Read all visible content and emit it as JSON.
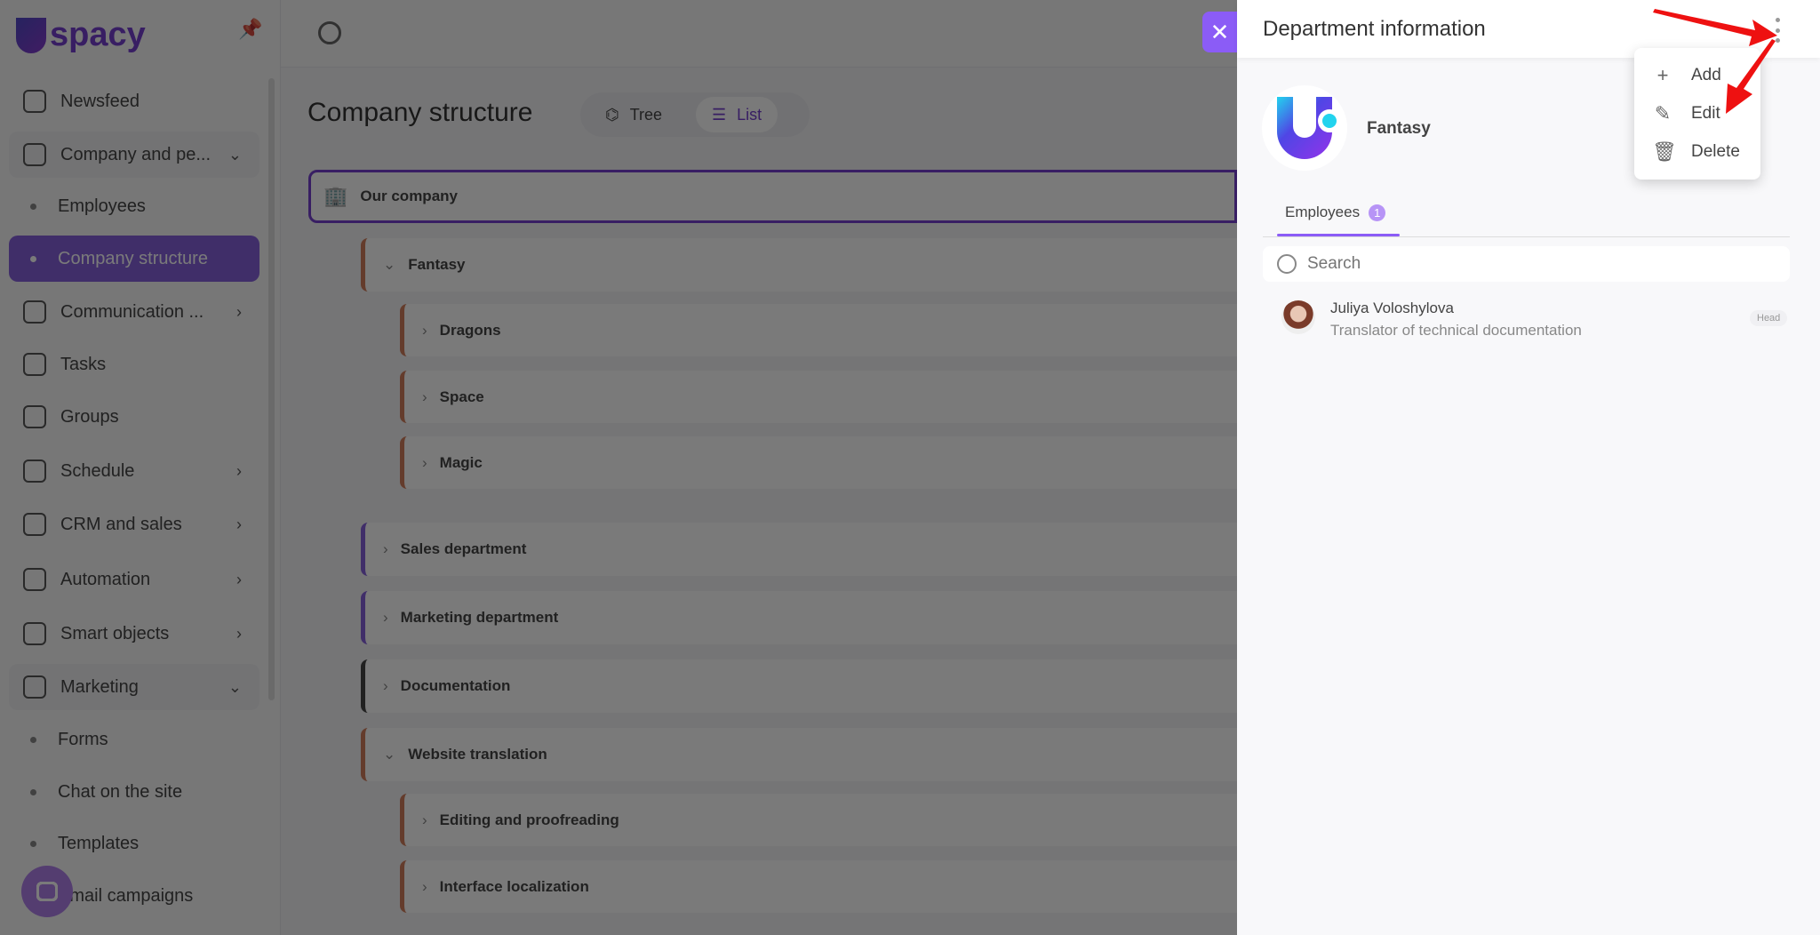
{
  "sidebar": {
    "logo": "spacy",
    "items": [
      {
        "label": "Newsfeed",
        "icon": "home-icon"
      },
      {
        "label": "Company and pe...",
        "icon": "building-icon",
        "expanded": true
      },
      {
        "label": "Employees",
        "sub": true
      },
      {
        "label": "Company structure",
        "sub": true,
        "active": true
      },
      {
        "label": "Communication ...",
        "icon": "chat-icon"
      },
      {
        "label": "Tasks",
        "icon": "check-circle-icon"
      },
      {
        "label": "Groups",
        "icon": "users-icon"
      },
      {
        "label": "Schedule",
        "icon": "calendar-icon"
      },
      {
        "label": "CRM and sales",
        "icon": "coins-icon"
      },
      {
        "label": "Automation",
        "icon": "lightning-icon"
      },
      {
        "label": "Smart objects",
        "icon": "scan-icon"
      },
      {
        "label": "Marketing",
        "icon": "megaphone-icon",
        "expanded": true
      },
      {
        "label": "Forms",
        "sub": true
      },
      {
        "label": "Chat on the site",
        "sub": true
      },
      {
        "label": "Templates",
        "sub": true
      },
      {
        "label": "Email campaigns",
        "sub": true
      }
    ]
  },
  "main": {
    "title": "Company structure",
    "view_tree": "Tree",
    "view_list": "List",
    "root": "Our company",
    "departments": [
      {
        "name": "Fantasy",
        "expanded": true,
        "color": "#e07a50"
      },
      {
        "name": "Dragons",
        "child": true,
        "color": "#e07a50"
      },
      {
        "name": "Space",
        "child": true,
        "color": "#e07a50"
      },
      {
        "name": "Magic",
        "child": true,
        "color": "#e07a50"
      },
      {
        "name": "Sales department",
        "color": "#8b5cf6"
      },
      {
        "name": "Marketing department",
        "color": "#8b5cf6"
      },
      {
        "name": "Documentation",
        "color": "#444444"
      },
      {
        "name": "Website translation",
        "expanded": true,
        "color": "#e07a50"
      },
      {
        "name": "Editing and proofreading",
        "child": true,
        "color": "#e07a50"
      },
      {
        "name": "Interface localization",
        "child": true,
        "color": "#e07a50"
      }
    ]
  },
  "panel": {
    "title": "Department information",
    "department": "Fantasy",
    "menu": {
      "add": "Add",
      "edit": "Edit",
      "delete": "Delete"
    },
    "tab": "Employees",
    "tab_count": "1",
    "search_placeholder": "Search",
    "employee": {
      "name": "Juliya Voloshylova",
      "position": "Translator of technical documentation",
      "role": "Head"
    }
  },
  "colors": {
    "accent": "#8b5cf6",
    "annotation": "#ee1111"
  }
}
